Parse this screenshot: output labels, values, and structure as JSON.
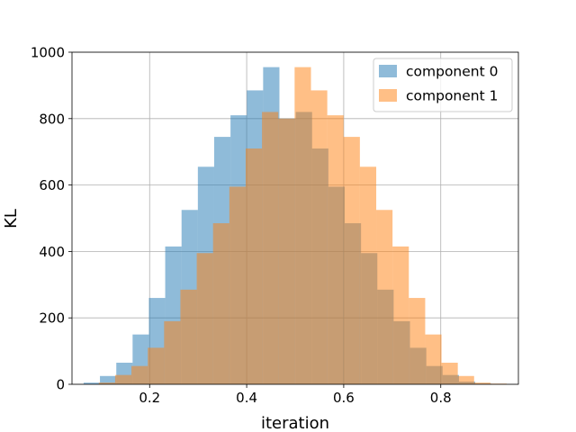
{
  "chart_data": {
    "type": "histogram",
    "xlabel": "iteration",
    "ylabel": "KL",
    "xlim": [
      0.04,
      0.96
    ],
    "ylim": [
      0,
      1000
    ],
    "xticks": [
      0.2,
      0.4,
      0.6,
      0.8
    ],
    "xtick_labels": [
      "0.2",
      "0.4",
      "0.6",
      "0.8"
    ],
    "yticks": [
      0,
      200,
      400,
      600,
      800,
      1000
    ],
    "ytick_labels": [
      "0",
      "200",
      "400",
      "600",
      "800",
      "1000"
    ],
    "grid": true,
    "legend_position": "upper right",
    "series": [
      {
        "name": "component 0",
        "color": "#1f77b4",
        "alpha": 0.5,
        "bin_edges": [
          0.064,
          0.0976,
          0.1313,
          0.1649,
          0.1985,
          0.2321,
          0.2658,
          0.2994,
          0.333,
          0.3667,
          0.4003,
          0.4339,
          0.4675,
          0.5012,
          0.5348,
          0.5684,
          0.6021,
          0.6357,
          0.6693,
          0.7029,
          0.7366,
          0.7702,
          0.8038,
          0.8375,
          0.8711,
          0.9047
        ],
        "counts": [
          5,
          25,
          65,
          150,
          260,
          415,
          525,
          655,
          745,
          810,
          885,
          955,
          800,
          820,
          710,
          595,
          485,
          395,
          285,
          190,
          110,
          55,
          28,
          8,
          2
        ]
      },
      {
        "name": "component 1",
        "color": "#ff7f0e",
        "alpha": 0.5,
        "bin_edges": [
          0.0953,
          0.1289,
          0.1625,
          0.1962,
          0.2298,
          0.2634,
          0.2971,
          0.3307,
          0.3643,
          0.3979,
          0.4316,
          0.4652,
          0.4988,
          0.5325,
          0.5661,
          0.5997,
          0.6333,
          0.667,
          0.7006,
          0.7342,
          0.7679,
          0.8015,
          0.8351,
          0.8687,
          0.9024,
          0.936
        ],
        "counts": [
          5,
          28,
          55,
          110,
          190,
          285,
          395,
          485,
          595,
          710,
          820,
          800,
          955,
          885,
          810,
          745,
          655,
          525,
          415,
          260,
          150,
          65,
          25,
          5,
          2
        ]
      }
    ]
  }
}
